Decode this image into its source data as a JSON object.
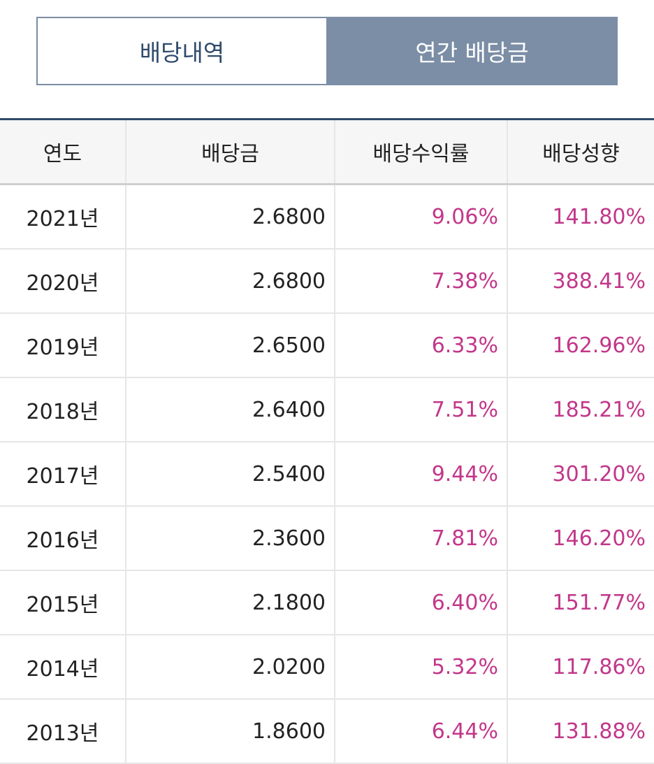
{
  "tabs": {
    "history_label": "배당내역",
    "annual_label": "연간 배당금"
  },
  "table": {
    "headers": [
      "연도",
      "배당금",
      "배당수익률",
      "배당성향"
    ],
    "rows": [
      {
        "year": "2021년",
        "dividend": "2.6800",
        "yield": "9.06%",
        "payout": "141.80%"
      },
      {
        "year": "2020년",
        "dividend": "2.6800",
        "yield": "7.38%",
        "payout": "388.41%"
      },
      {
        "year": "2019년",
        "dividend": "2.6500",
        "yield": "6.33%",
        "payout": "162.96%"
      },
      {
        "year": "2018년",
        "dividend": "2.6400",
        "yield": "7.51%",
        "payout": "185.21%"
      },
      {
        "year": "2017년",
        "dividend": "2.5400",
        "yield": "9.44%",
        "payout": "301.20%"
      },
      {
        "year": "2016년",
        "dividend": "2.3600",
        "yield": "7.81%",
        "payout": "146.20%"
      },
      {
        "year": "2015년",
        "dividend": "2.1800",
        "yield": "6.40%",
        "payout": "151.77%"
      },
      {
        "year": "2014년",
        "dividend": "2.0200",
        "yield": "5.32%",
        "payout": "117.86%"
      },
      {
        "year": "2013년",
        "dividend": "1.8600",
        "yield": "6.44%",
        "payout": "131.88%"
      }
    ]
  },
  "colors": {
    "accent": "#2f4a6b",
    "active_tab": "#7b8ea6",
    "highlight_value": "#c2378a"
  }
}
